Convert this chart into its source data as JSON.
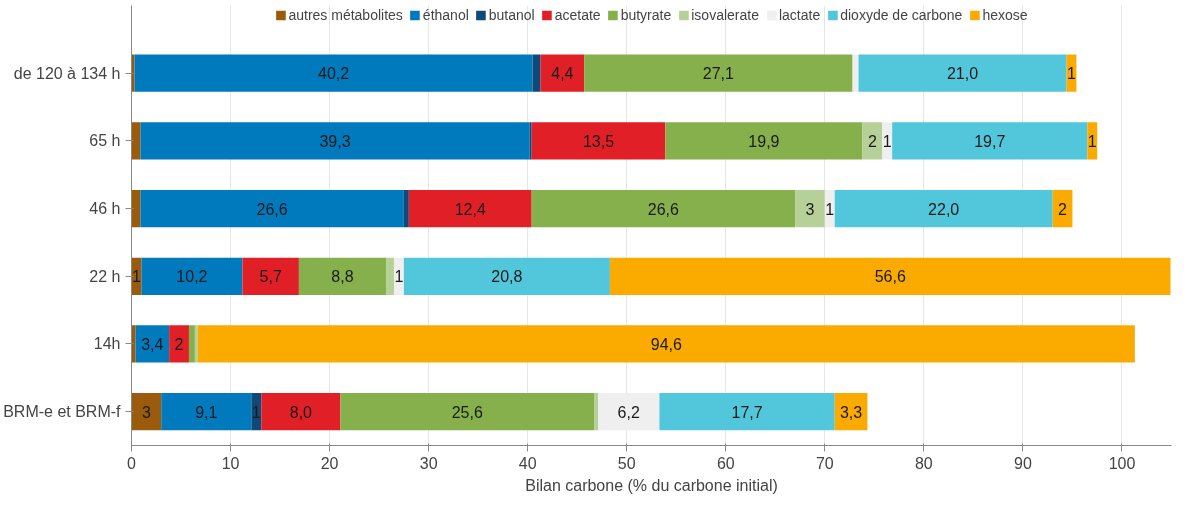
{
  "chart_data": {
    "type": "bar",
    "orientation": "horizontal",
    "stacked": true,
    "xlabel": "Bilan carbone (% du carbone initial)",
    "categories": [
      "de 120 à 134 h",
      "65 h",
      "46 h",
      "22 h",
      "14h",
      "BRM-e et BRM-f"
    ],
    "xlim": [
      0,
      105
    ],
    "xticks": [
      0,
      10,
      20,
      30,
      40,
      50,
      60,
      70,
      80,
      90,
      100
    ],
    "grid": "x",
    "legend": "top",
    "series": [
      {
        "name": "autres métabolites",
        "color": "#9a5b0c",
        "values": [
          0.3,
          0.9,
          0.9,
          1,
          0.4,
          3
        ],
        "value_labels": [
          null,
          null,
          null,
          "1",
          null,
          "3"
        ]
      },
      {
        "name": "éthanol",
        "color": "#0179bd",
        "values": [
          40.2,
          39.3,
          26.6,
          10.2,
          3.4,
          9.1
        ],
        "value_labels": [
          "40,2",
          "39,3",
          "26,6",
          "10,2",
          "3,4",
          "9,1"
        ]
      },
      {
        "name": "butanol",
        "color": "#0d4a7a",
        "values": [
          0.8,
          0.2,
          0.5,
          0,
          0,
          1
        ],
        "value_labels": [
          null,
          null,
          null,
          null,
          null,
          "1"
        ]
      },
      {
        "name": "acetate",
        "color": "#e11f26",
        "values": [
          4.4,
          13.5,
          12.4,
          5.7,
          2,
          8.0
        ],
        "value_labels": [
          "4,4",
          "13,5",
          "12,4",
          "5,7",
          "2",
          "8,0"
        ]
      },
      {
        "name": "butyrate",
        "color": "#86b04b",
        "values": [
          27.1,
          19.9,
          26.6,
          8.8,
          0.6,
          25.6
        ],
        "value_labels": [
          "27,1",
          "19,9",
          "26,6",
          "8,8",
          null,
          "25,6"
        ]
      },
      {
        "name": "isovalerate",
        "color": "#b6d198",
        "values": [
          0,
          2,
          3,
          0.8,
          0.3,
          0.4
        ],
        "value_labels": [
          null,
          "2",
          "3",
          null,
          null,
          null
        ]
      },
      {
        "name": "lactate",
        "color": "#efefef",
        "values": [
          0.6,
          1,
          1,
          1,
          0,
          6.2
        ],
        "value_labels": [
          null,
          "1",
          "1",
          "1",
          null,
          "6,2"
        ]
      },
      {
        "name": "dioxyde de carbone",
        "color": "#52c6da",
        "values": [
          21.0,
          19.7,
          22.0,
          20.8,
          0,
          17.7
        ],
        "value_labels": [
          "21,0",
          "19,7",
          "22,0",
          "20,8",
          null,
          "17,7"
        ]
      },
      {
        "name": "hexose",
        "color": "#fbaa00",
        "values": [
          1,
          1,
          2,
          56.6,
          94.6,
          3.3
        ],
        "value_labels": [
          "1",
          "1",
          "2",
          "56,6",
          "94,6",
          "3,3"
        ]
      }
    ]
  }
}
